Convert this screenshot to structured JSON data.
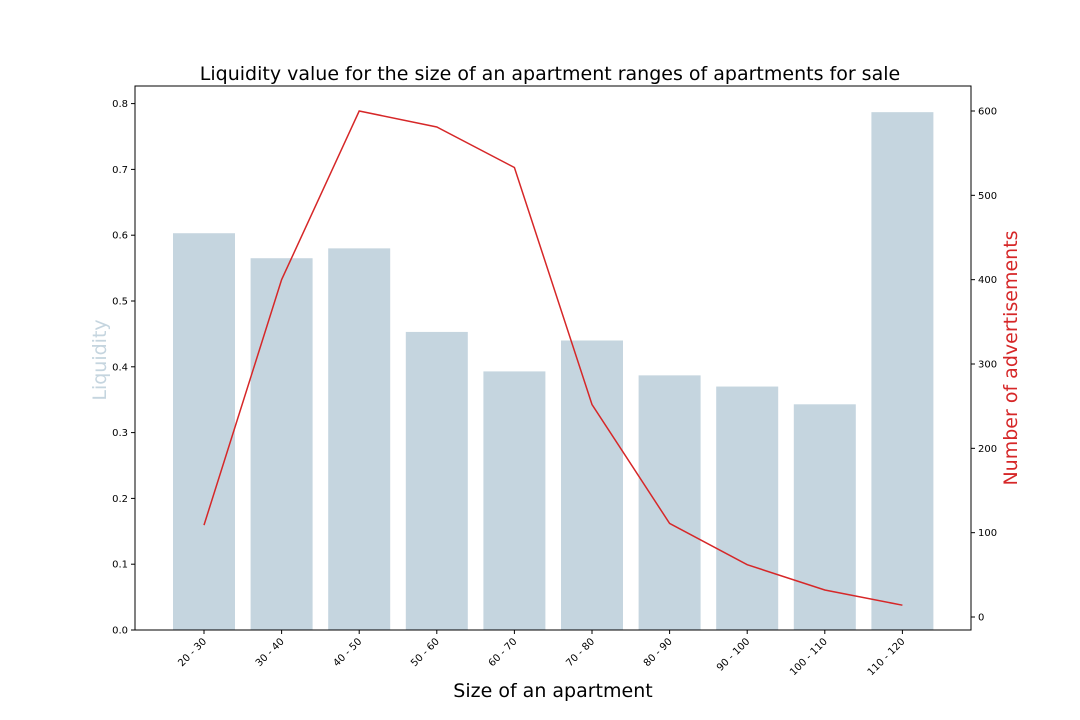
{
  "chart_data": {
    "type": "bar",
    "title": "Liquidity value for the size of an apartment ranges of apartments for sale",
    "xlabel": "Size of an apartment",
    "categories": [
      "20 - 30",
      "30 - 40",
      "40 - 50",
      "50 - 60",
      "60 - 70",
      "70 - 80",
      "80 - 90",
      "90 - 100",
      "100 - 110",
      "110 - 120"
    ],
    "series": [
      {
        "axis": "left",
        "chart_type": "bar",
        "color": "#c5d5df",
        "values": [
          0.603,
          0.565,
          0.58,
          0.453,
          0.393,
          0.44,
          0.387,
          0.37,
          0.343,
          0.787
        ]
      },
      {
        "axis": "right",
        "chart_type": "line",
        "color": "#d62728",
        "values": [
          109,
          400,
          600,
          581,
          533,
          252,
          111,
          62,
          32,
          14
        ]
      }
    ],
    "left_axis": {
      "label": "Liquidity",
      "label_color": "#c5d5df",
      "ylim": [
        0,
        0.8
      ],
      "ticks": [
        "0.0",
        "0.1",
        "0.2",
        "0.3",
        "0.4",
        "0.5",
        "0.6",
        "0.7",
        "0.8"
      ]
    },
    "right_axis": {
      "label": "Number of advertisements",
      "label_color": "#d62728",
      "ylim": [
        0,
        600
      ],
      "ticks": [
        "0",
        "100",
        "200",
        "300",
        "400",
        "500",
        "600"
      ]
    },
    "grid": false,
    "legend": "none"
  }
}
